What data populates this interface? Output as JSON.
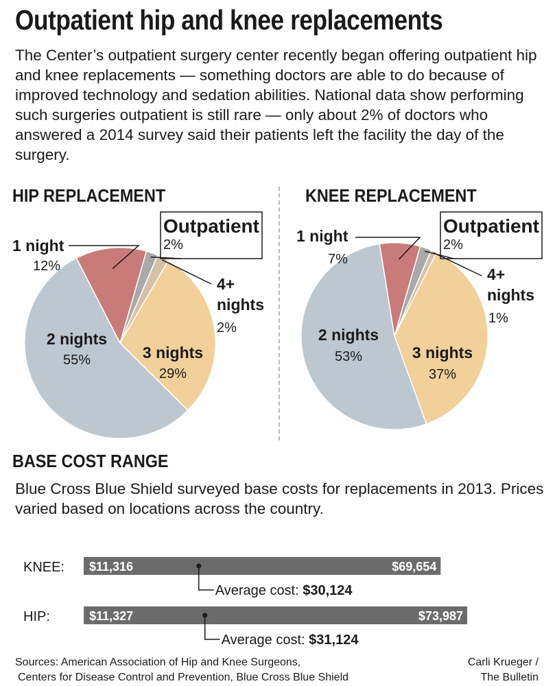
{
  "title": "Outpatient hip and knee replacements",
  "intro": "The Center’s outpatient surgery center recently began offering outpatient hip and knee replacements — something doctors are able to do because of improved technology and sedation abilities. National data show performing such surgeries outpatient is still rare — only about 2% of doctors who answered a 2014 survey said their patients left the facility the day of the surgery.",
  "cost_section": {
    "heading": "BASE COST RANGE",
    "description": "Blue Cross Blue Shield surveyed base costs for replacements in 2013. Prices varied based on locations across the country."
  },
  "sources": [
    "Sources:  American Association of Hip and Knee Surgeons,",
    "Centers for Disease Control and Prevention, Blue Cross Blue Shield"
  ],
  "credit": [
    "Carli Krueger /",
    "The Bulletin"
  ],
  "colors": {
    "outpatient": "#a9a9a9",
    "one_night": "#c97b79",
    "two_nights": "#bcc7cf",
    "three_nights": "#f1d09a",
    "four_plus": "#d7c0a8",
    "bar": "#6b6b6b"
  },
  "chart_data": [
    {
      "type": "pie",
      "title": "HIP REPLACEMENT",
      "slices": [
        {
          "label": "Outpatient",
          "value": 2
        },
        {
          "label": "4+ nights",
          "value": 2
        },
        {
          "label": "3 nights",
          "value": 29
        },
        {
          "label": "2 nights",
          "value": 55
        },
        {
          "label": "1 night",
          "value": 12
        }
      ]
    },
    {
      "type": "pie",
      "title": "KNEE REPLACEMENT",
      "slices": [
        {
          "label": "Outpatient",
          "value": 2
        },
        {
          "label": "4+ nights",
          "value": 1
        },
        {
          "label": "3 nights",
          "value": 37
        },
        {
          "label": "2 nights",
          "value": 53
        },
        {
          "label": "1 night",
          "value": 7
        }
      ]
    },
    {
      "type": "range-bar",
      "title": "BASE COST RANGE",
      "average_label": "Average cost:",
      "rows": [
        {
          "label": "KNEE:",
          "min": 11316,
          "max": 69654,
          "average": 30124,
          "min_label": "$11,316",
          "max_label": "$69,654",
          "average_text": "$30,124"
        },
        {
          "label": "HIP:",
          "min": 11327,
          "max": 73987,
          "average": 31124,
          "min_label": "$11,327",
          "max_label": "$73,987",
          "average_text": "$31,124"
        }
      ]
    }
  ]
}
